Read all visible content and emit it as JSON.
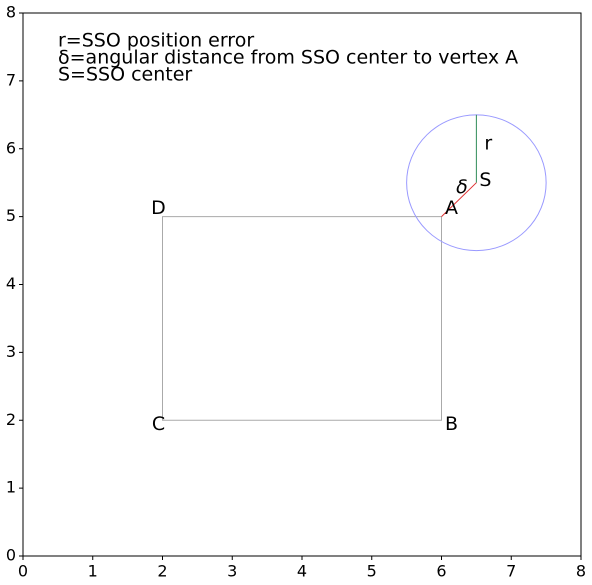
{
  "chart_data": {
    "type": "geometry",
    "xlim": [
      0,
      8
    ],
    "ylim": [
      0,
      8
    ],
    "xticks": [
      0,
      1,
      2,
      3,
      4,
      5,
      6,
      7,
      8
    ],
    "yticks": [
      0,
      1,
      2,
      3,
      4,
      5,
      6,
      7,
      8
    ],
    "notes": [
      "r=SSO position error",
      "δ=angular distance from SSO center to vertex A",
      "S=SSO center"
    ],
    "points": [
      {
        "label": "A",
        "x": 6,
        "y": 5
      },
      {
        "label": "B",
        "x": 6,
        "y": 2
      },
      {
        "label": "C",
        "x": 2,
        "y": 2
      },
      {
        "label": "D",
        "x": 2,
        "y": 5
      },
      {
        "label": "S",
        "x": 6.5,
        "y": 5.5
      }
    ],
    "rectangle_color": "#aaaaaa",
    "circle": {
      "x": 6.5,
      "y": 5.5,
      "radius": 1,
      "color": "#9999ff"
    },
    "radius_line": {
      "label": "r",
      "color": "#2e8b57"
    },
    "distance_line": {
      "label": "δ",
      "color": "#e03030"
    }
  }
}
